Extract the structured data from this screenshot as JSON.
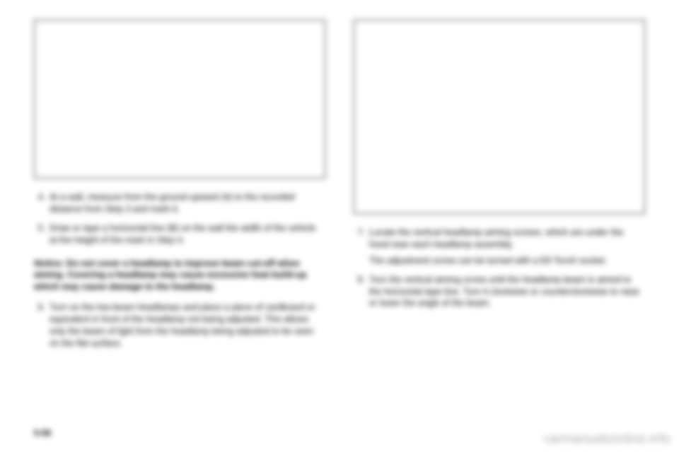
{
  "left": {
    "steps_a": [
      {
        "n": "4.",
        "t": "At a wall, measure from the ground upward (A) to the recorded distance from Step 3 and mark it."
      },
      {
        "n": "5.",
        "t": "Draw or tape a horizontal line (B) on the wall the width of the vehicle at the height of the mark in Step 4."
      }
    ],
    "notice_label": "Notice:",
    "notice_text": "Do not cover a headlamp to improve beam cut-off when aiming. Covering a headlamp may cause excessive heat build-up which may cause damage to the headlamp.",
    "steps_b": [
      {
        "n": "6.",
        "t": "Turn on the low-beam headlamps and place a piece of cardboard or equivalent in front of the headlamp not being adjusted. This allows only the beam of light from the headlamp being adjusted to be seen on the flat surface."
      }
    ]
  },
  "right": {
    "steps": [
      {
        "n": "7.",
        "t": "Locate the vertical headlamp aiming screws, which are under the hood near each headlamp assembly.",
        "sub": "The adjustment screw can be turned with a E8 Torx® socket."
      },
      {
        "n": "8.",
        "t": "Turn the vertical aiming screw until the headlamp beam is aimed to the horizontal tape line. Turn it clockwise or counterclockwise to raise or lower the angle of the beam."
      }
    ]
  },
  "page_number": "5-58",
  "watermark": "carmanualsonline.info"
}
